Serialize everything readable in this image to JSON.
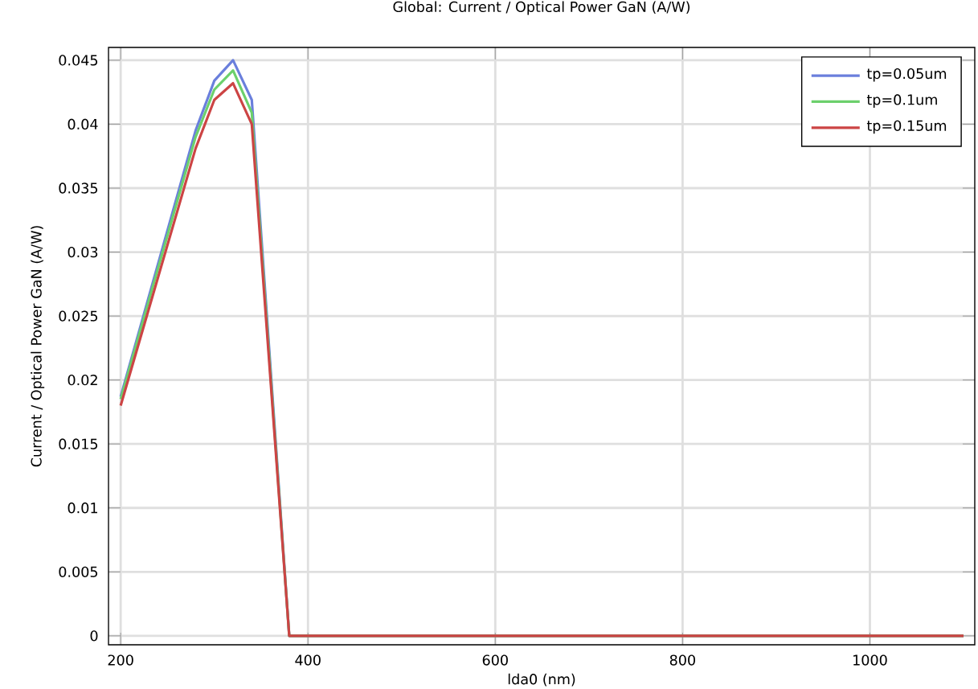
{
  "chart_data": {
    "type": "line",
    "title": "Global: Current / Optical Power GaN (A/W)",
    "xlabel": "lda0 (nm)",
    "ylabel": "Current / Optical Power GaN (A/W)",
    "x": [
      200,
      280,
      300,
      320,
      340,
      380,
      1100
    ],
    "series": [
      {
        "name": "tp=0.05um",
        "color": "#6a7fdc",
        "values": [
          0.0187,
          0.0395,
          0.0434,
          0.045,
          0.0419,
          0,
          0
        ]
      },
      {
        "name": "tp=0.1um",
        "color": "#6cd06c",
        "values": [
          0.0185,
          0.039,
          0.0427,
          0.0442,
          0.0409,
          0,
          0
        ]
      },
      {
        "name": "tp=0.15um",
        "color": "#cc4444",
        "values": [
          0.018,
          0.0381,
          0.0419,
          0.0432,
          0.04,
          0,
          0
        ]
      }
    ],
    "xlim": [
      187,
      1112
    ],
    "ylim": [
      -0.0007,
      0.046
    ],
    "xticks": [
      200,
      400,
      600,
      800,
      1000
    ],
    "yticks": [
      0,
      0.005,
      0.01,
      0.015,
      0.02,
      0.025,
      0.03,
      0.035,
      0.04,
      0.045
    ],
    "grid": true,
    "legend": "top right",
    "marker": "none",
    "line_style": "solid"
  }
}
